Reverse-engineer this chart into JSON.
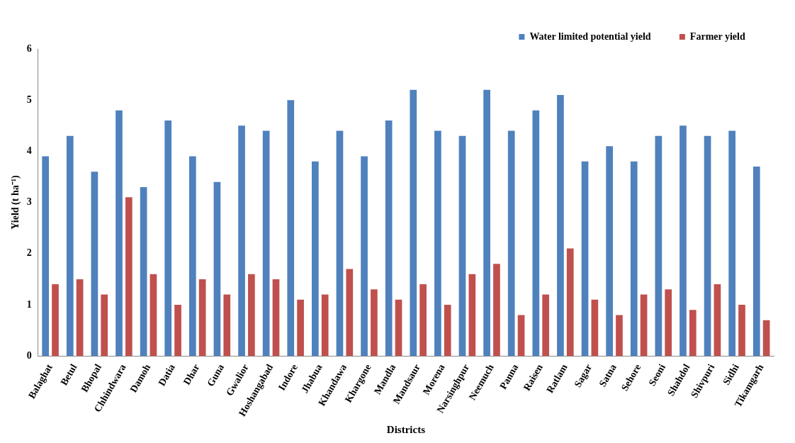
{
  "chart_data": {
    "type": "bar",
    "xlabel": "Districts",
    "ylabel": "Yield (t ha⁻¹)",
    "categories": [
      "Balaghat",
      "Betul",
      "Bhopal",
      "Chhindwara",
      "Damoh",
      "Datia",
      "Dhar",
      "Guna",
      "Gwalior",
      "Hoshangabad",
      "Indore",
      "Jhabua",
      "Khandawa",
      "Khargone",
      "Mandla",
      "Mandsaur",
      "Morena",
      "Narsinghpur",
      "Neemuch",
      "Panna",
      "Raisen",
      "Ratlam",
      "Sagar",
      "Satna",
      "Sehore",
      "Seoni",
      "Shahdol",
      "Shivpuri",
      "Sidhi",
      "Tikamgarh"
    ],
    "series": [
      {
        "name": "Water limited potential yield",
        "color": "#4f81bd",
        "values": [
          3.9,
          4.3,
          3.6,
          4.8,
          3.3,
          4.6,
          3.9,
          3.4,
          4.5,
          4.4,
          5.0,
          3.8,
          4.4,
          3.9,
          4.6,
          5.2,
          4.4,
          4.3,
          5.2,
          4.4,
          4.8,
          5.1,
          3.8,
          4.1,
          3.8,
          4.3,
          4.5,
          4.3,
          4.4,
          3.7
        ]
      },
      {
        "name": "Farmer yield",
        "color": "#c0504d",
        "values": [
          1.4,
          1.5,
          1.2,
          3.1,
          1.6,
          1.0,
          1.5,
          1.2,
          1.6,
          1.5,
          1.1,
          1.2,
          1.7,
          1.3,
          1.1,
          1.4,
          1.0,
          1.6,
          1.8,
          0.8,
          1.2,
          2.1,
          1.1,
          0.8,
          1.2,
          1.3,
          0.9,
          1.4,
          1.0,
          0.7
        ]
      }
    ],
    "ylim": [
      0,
      6
    ],
    "yticks": [
      0,
      1,
      2,
      3,
      4,
      5,
      6
    ],
    "grid": false,
    "legend": "top right"
  }
}
